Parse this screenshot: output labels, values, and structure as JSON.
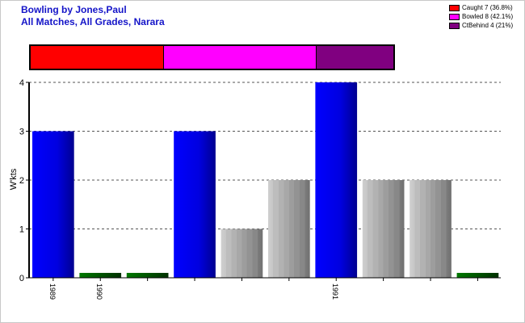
{
  "title_line1": "Bowling by Jones,Paul",
  "title_line2": "All Matches, All Grades, Narara",
  "legend": [
    {
      "label": "Caught 7 (36.8%)",
      "color": "#ff0000"
    },
    {
      "label": "Bowled 8 (42.1%)",
      "color": "#ff00ff"
    },
    {
      "label": "CtBehind 4 (21%)",
      "color": "#800080"
    }
  ],
  "dismissal_breakdown": [
    {
      "name": "Caught",
      "count": 7,
      "color": "#ff0000"
    },
    {
      "name": "Bowled",
      "count": 8,
      "color": "#ff00ff"
    },
    {
      "name": "CtBehind",
      "count": 4,
      "color": "#800080"
    }
  ],
  "chart_data": {
    "type": "bar",
    "ylabel": "W'kts",
    "xlabel": "",
    "ylim": [
      0,
      4
    ],
    "yticks": [
      0,
      1,
      2,
      3,
      4
    ],
    "grid": true,
    "categories": [
      "1989",
      "1990",
      "",
      "",
      "",
      "",
      "1991",
      "",
      "",
      ""
    ],
    "values": [
      3,
      0.1,
      0.1,
      3,
      1,
      2,
      4,
      2,
      2,
      0.1
    ],
    "bar_colors": [
      "blue",
      "green",
      "green",
      "blue",
      "gray",
      "gray",
      "blue",
      "gray",
      "gray",
      "green"
    ]
  }
}
